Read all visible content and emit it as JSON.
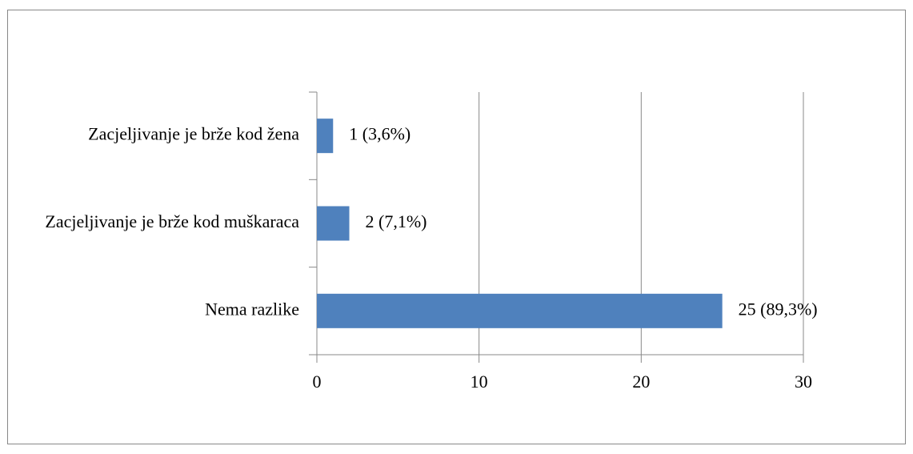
{
  "chart_data": {
    "type": "barh",
    "categories": [
      "Zacjeljivanje je brže kod žena",
      "Zacjeljivanje je brže kod muškaraca",
      "Nema razlike"
    ],
    "values": [
      1,
      2,
      25
    ],
    "value_labels": [
      "1 (3,6%)",
      "2 (7,1%)",
      "25 (89,3%)"
    ],
    "color": "#4f81bd",
    "xlim": [
      0,
      30
    ],
    "xticks": [
      0,
      10,
      20,
      30
    ],
    "grid": true
  }
}
